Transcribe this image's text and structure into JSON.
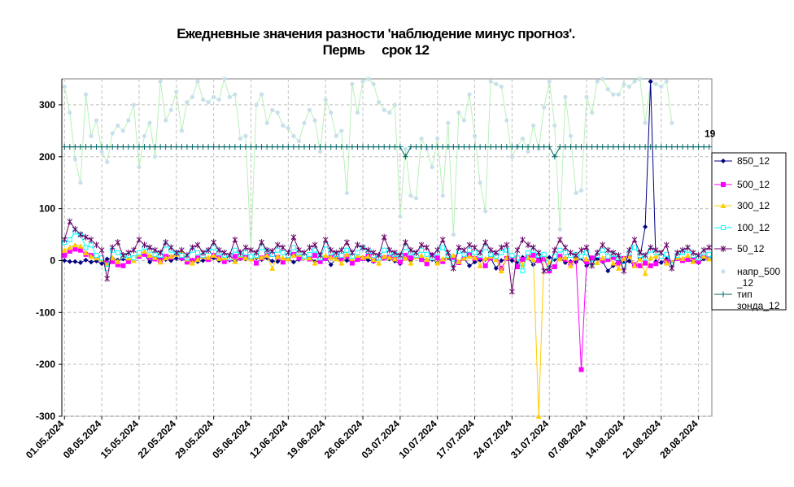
{
  "chart_data": {
    "type": "line",
    "title_line1": "Ежедневные значения разности 'наблюдение минус прогноз'.",
    "title_line2": "Пермь     срок 12",
    "ylim": [
      -300,
      350
    ],
    "yticks": [
      "300",
      "200",
      "100",
      "0",
      "-100",
      "-200",
      "-300"
    ],
    "ytick_values": [
      300,
      200,
      100,
      0,
      -100,
      -200,
      -300
    ],
    "xticks": [
      "01.05.2024",
      "08.05.2024",
      "15.05.2024",
      "22.05.2024",
      "29.05.2024",
      "05.06.2024",
      "12.06.2024",
      "19.06.2024",
      "26.06.2024",
      "03.07.2024",
      "10.07.2024",
      "17.07.2024",
      "24.07.2024",
      "31.07.2024",
      "07.08.2024",
      "14.08.2024",
      "21.08.2024",
      "28.08.2024"
    ],
    "x_days": 122,
    "grid": true,
    "legend_position": "right",
    "annotation": "19",
    "annotation_value": 219,
    "series": [
      {
        "name": "850_12",
        "color": "#000080",
        "marker": "diamond",
        "values": [
          0,
          -2,
          -2,
          -4,
          1,
          -3,
          -1,
          -6,
          3,
          4,
          1,
          3,
          0,
          5,
          8,
          12,
          -3,
          5,
          4,
          2,
          0,
          4,
          3,
          1,
          1,
          -2,
          0,
          2,
          5,
          0,
          2,
          1,
          -1,
          4,
          3,
          3,
          5,
          2,
          5,
          -1,
          -2,
          3,
          3,
          -3,
          2,
          5,
          6,
          -2,
          -1,
          7,
          -8,
          4,
          2,
          0,
          -2,
          2,
          6,
          1,
          -2,
          4,
          5,
          3,
          -1,
          -6,
          6,
          -1,
          8,
          3,
          0,
          2,
          -4,
          2,
          5,
          -5,
          -3,
          4,
          -10,
          -3,
          1,
          2,
          5,
          -15,
          0,
          3,
          0,
          -3,
          6,
          5,
          -8,
          4,
          5,
          6,
          2,
          5,
          -4,
          -2,
          -3,
          5,
          -10,
          -4,
          3,
          -2,
          -20,
          -10,
          1,
          -5,
          -1,
          -10,
          5,
          65,
          345,
          -2,
          -4,
          3,
          -3,
          5,
          0,
          2,
          -2,
          -4,
          3,
          4,
          -1,
          2
        ]
      },
      {
        "name": "500_12",
        "color": "#ff00ff",
        "marker": "square",
        "values": [
          10,
          18,
          22,
          20,
          12,
          10,
          8,
          5,
          -5,
          -2,
          -8,
          -10,
          -2,
          5,
          8,
          12,
          6,
          3,
          0,
          8,
          6,
          15,
          5,
          -3,
          0,
          5,
          8,
          2,
          10,
          5,
          -2,
          3,
          8,
          5,
          10,
          8,
          -5,
          5,
          10,
          12,
          6,
          -3,
          10,
          12,
          5,
          8,
          3,
          10,
          -2,
          4,
          7,
          12,
          3,
          8,
          -5,
          2,
          4,
          12,
          0,
          6,
          5,
          8,
          4,
          -3,
          10,
          5,
          8,
          2,
          -6,
          10,
          5,
          -2,
          8,
          6,
          -4,
          10,
          12,
          4,
          6,
          -10,
          5,
          10,
          -15,
          4,
          8,
          -12,
          2,
          6,
          10,
          0,
          3,
          -20,
          -12,
          8,
          2,
          -5,
          5,
          -210,
          -2,
          5,
          10,
          0,
          2,
          6,
          -5,
          4,
          8,
          -8,
          -10,
          -5,
          -10,
          -6,
          8,
          -2,
          -5,
          4,
          0,
          2,
          6,
          -2,
          10,
          4
        ]
      },
      {
        "name": "300_12",
        "color": "#ffcc00",
        "marker": "triangle",
        "values": [
          20,
          25,
          30,
          28,
          15,
          8,
          5,
          3,
          -8,
          5,
          -2,
          10,
          5,
          0,
          12,
          18,
          10,
          6,
          -3,
          5,
          8,
          12,
          15,
          3,
          -5,
          2,
          8,
          6,
          10,
          4,
          5,
          6,
          -2,
          10,
          5,
          3,
          8,
          6,
          10,
          -15,
          8,
          5,
          3,
          10,
          12,
          6,
          5,
          -5,
          8,
          10,
          6,
          3,
          -5,
          12,
          4,
          10,
          6,
          8,
          2,
          -5,
          8,
          6,
          3,
          10,
          5,
          -5,
          8,
          10,
          2,
          6,
          -5,
          3,
          8,
          10,
          -2,
          5,
          8,
          6,
          -10,
          4,
          8,
          2,
          -20,
          5,
          10,
          3,
          -8,
          6,
          2,
          -300,
          12,
          -5,
          8,
          3,
          6,
          -10,
          5,
          8,
          3,
          -6,
          -4,
          5,
          10,
          -5,
          -15,
          4,
          8,
          -10,
          3,
          -25,
          5,
          8,
          10,
          -5,
          -3,
          6,
          4,
          10,
          -2,
          5,
          8,
          3
        ]
      },
      {
        "name": "100_12",
        "color": "#00ffff",
        "marker": "square-open",
        "values": [
          35,
          40,
          55,
          50,
          25,
          30,
          10,
          5,
          -15,
          20,
          15,
          8,
          10,
          5,
          15,
          25,
          20,
          12,
          10,
          30,
          20,
          15,
          10,
          5,
          20,
          15,
          10,
          18,
          25,
          15,
          10,
          5,
          20,
          12,
          15,
          8,
          10,
          25,
          18,
          12,
          20,
          15,
          10,
          25,
          15,
          8,
          12,
          20,
          5,
          30,
          15,
          12,
          10,
          20,
          8,
          15,
          25,
          18,
          10,
          5,
          20,
          15,
          12,
          8,
          25,
          15,
          10,
          20,
          12,
          5,
          15,
          25,
          10,
          -5,
          18,
          12,
          20,
          15,
          10,
          25,
          12,
          8,
          15,
          20,
          10,
          5,
          -20,
          15,
          20,
          10,
          12,
          -15,
          8,
          20,
          15,
          10,
          12,
          8,
          15,
          -5,
          10,
          20,
          8,
          12,
          5,
          -10,
          15,
          25,
          10,
          5,
          20,
          15,
          8,
          12,
          -8,
          10,
          15,
          20,
          10,
          5,
          15,
          12,
          -10
        ]
      },
      {
        "name": "50_12",
        "color": "#660066",
        "marker": "star",
        "values": [
          40,
          75,
          60,
          50,
          45,
          40,
          30,
          20,
          -35,
          25,
          35,
          10,
          15,
          20,
          40,
          30,
          25,
          20,
          15,
          35,
          25,
          15,
          20,
          10,
          25,
          30,
          15,
          20,
          35,
          20,
          15,
          10,
          40,
          15,
          25,
          20,
          15,
          35,
          20,
          18,
          30,
          25,
          15,
          45,
          20,
          15,
          25,
          30,
          10,
          40,
          20,
          15,
          20,
          35,
          15,
          30,
          25,
          20,
          15,
          10,
          45,
          20,
          15,
          10,
          35,
          20,
          15,
          30,
          25,
          10,
          20,
          40,
          15,
          -15,
          25,
          20,
          30,
          25,
          15,
          35,
          20,
          15,
          25,
          30,
          -60,
          20,
          40,
          30,
          25,
          15,
          -20,
          -15,
          20,
          40,
          25,
          15,
          10,
          20,
          25,
          -10,
          15,
          30,
          20,
          15,
          10,
          -20,
          20,
          40,
          15,
          10,
          25,
          20,
          15,
          30,
          -15,
          15,
          20,
          25,
          15,
          10,
          20,
          25,
          15
        ]
      },
      {
        "name": "напр_500_12",
        "color": "#c8e0ec",
        "marker": "circle",
        "values": [
          335,
          285,
          195,
          150,
          320,
          240,
          270,
          210,
          190,
          245,
          260,
          250,
          270,
          300,
          180,
          240,
          265,
          200,
          345,
          270,
          290,
          325,
          250,
          305,
          315,
          345,
          310,
          305,
          315,
          310,
          350,
          315,
          320,
          235,
          240,
          20,
          300,
          320,
          265,
          290,
          285,
          260,
          255,
          240,
          230,
          265,
          290,
          270,
          210,
          310,
          285,
          240,
          250,
          130,
          340,
          285,
          345,
          350,
          340,
          305,
          290,
          285,
          300,
          85,
          215,
          125,
          120,
          235,
          215,
          180,
          235,
          125,
          265,
          50,
          285,
          270,
          320,
          240,
          150,
          95,
          345,
          340,
          335,
          270,
          200,
          220,
          235,
          210,
          260,
          215,
          295,
          345,
          260,
          60,
          315,
          240,
          130,
          135,
          315,
          285,
          345,
          350,
          330,
          320,
          320,
          340,
          335,
          345,
          350,
          265,
          345,
          340,
          335,
          345,
          265
        ]
      },
      {
        "name": "тип зонда_12",
        "color": "#006666",
        "marker": "plus",
        "values": [
          219,
          219,
          219,
          219,
          219,
          219,
          219,
          219,
          219,
          219,
          219,
          219,
          219,
          219,
          219,
          219,
          219,
          219,
          219,
          219,
          219,
          219,
          219,
          219,
          219,
          219,
          219,
          219,
          219,
          219,
          219,
          219,
          219,
          219,
          219,
          219,
          219,
          219,
          219,
          219,
          219,
          219,
          219,
          219,
          219,
          219,
          219,
          219,
          219,
          219,
          219,
          219,
          219,
          219,
          219,
          219,
          219,
          219,
          219,
          219,
          219,
          219,
          219,
          219,
          200,
          219,
          219,
          219,
          219,
          219,
          219,
          219,
          219,
          219,
          219,
          219,
          219,
          219,
          219,
          219,
          219,
          219,
          219,
          219,
          219,
          219,
          219,
          219,
          219,
          219,
          219,
          219,
          200,
          219,
          219,
          219,
          219,
          219,
          219,
          219,
          219,
          219,
          219,
          219,
          219,
          219,
          219,
          219,
          219,
          219,
          219,
          219,
          219,
          219,
          219,
          219,
          219,
          219,
          219,
          219,
          219,
          219
        ]
      }
    ]
  },
  "legend_labels": [
    {
      "lines": [
        "850_12"
      ]
    },
    {
      "lines": [
        "500_12"
      ]
    },
    {
      "lines": [
        "300_12"
      ]
    },
    {
      "lines": [
        "100_12"
      ]
    },
    {
      "lines": [
        "50_12"
      ]
    },
    {
      "lines": [
        "напр_500",
        "_12"
      ]
    },
    {
      "lines": [
        "тип",
        "зонда_12"
      ]
    }
  ]
}
